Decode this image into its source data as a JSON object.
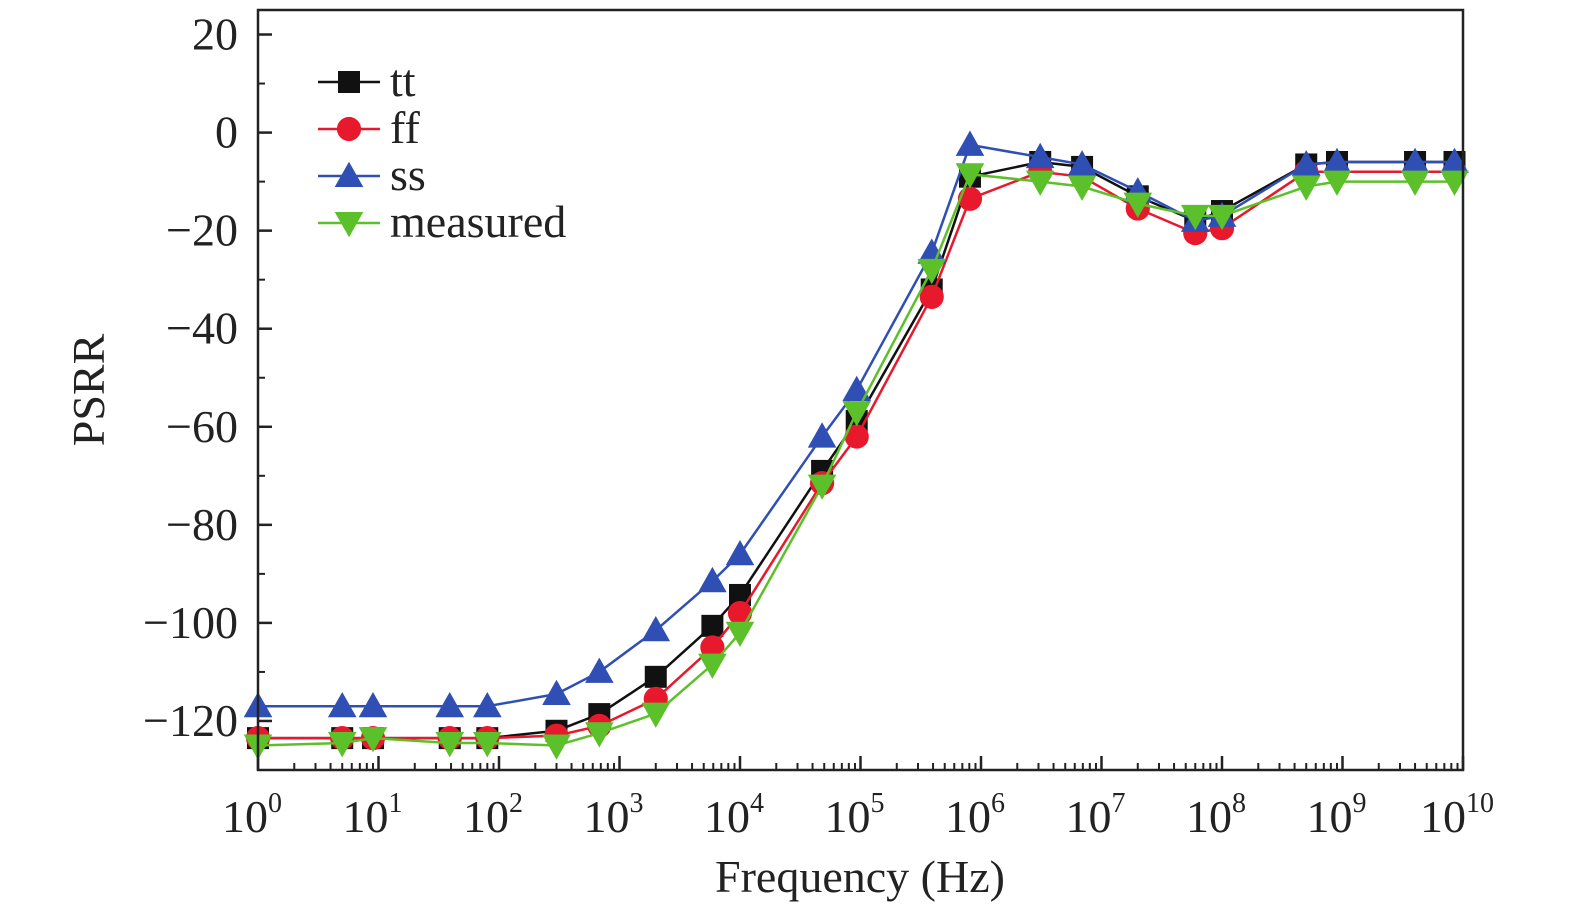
{
  "chart_data": {
    "type": "line",
    "title": "",
    "xlabel": "Frequency (Hz)",
    "ylabel": "PSRR",
    "x_scale": "log",
    "xlim": [
      1,
      10000000000
    ],
    "ylim": [
      -130,
      25
    ],
    "x_ticks": [
      {
        "base": "10",
        "exp": "0"
      },
      {
        "base": "10",
        "exp": "1"
      },
      {
        "base": "10",
        "exp": "2"
      },
      {
        "base": "10",
        "exp": "3"
      },
      {
        "base": "10",
        "exp": "4"
      },
      {
        "base": "10",
        "exp": "5"
      },
      {
        "base": "10",
        "exp": "6"
      },
      {
        "base": "10",
        "exp": "7"
      },
      {
        "base": "10",
        "exp": "8"
      },
      {
        "base": "10",
        "exp": "9"
      },
      {
        "base": "10",
        "exp": "10"
      }
    ],
    "y_ticks": [
      "20",
      "0",
      "−20",
      "−40",
      "−60",
      "−80",
      "−100",
      "−120"
    ],
    "y_tick_values": [
      20,
      0,
      -20,
      -40,
      -60,
      -80,
      -100,
      -120
    ],
    "grid": false,
    "legend_position": "top-left",
    "x": [
      1,
      5,
      9,
      39,
      80,
      300,
      680,
      2000,
      5900,
      10000,
      48000,
      93000,
      390000,
      810000,
      3100000,
      6900000,
      20000000,
      60000000,
      100000000,
      500000000,
      900000000,
      4000000000,
      8500000000
    ],
    "series": [
      {
        "name": "tt",
        "color": "#111111",
        "marker": "square",
        "values": [
          -123.5,
          -123.5,
          -123.5,
          -123.5,
          -123.5,
          -122,
          -118.6,
          -111,
          -100.6,
          -94.3,
          -69,
          -58.8,
          -32,
          -9,
          -6,
          -7,
          -13,
          -18,
          -16,
          -6.5,
          -6,
          -6,
          -6
        ]
      },
      {
        "name": "ff",
        "color": "#e8192c",
        "marker": "circle",
        "values": [
          -123.5,
          -123.5,
          -123.5,
          -123.5,
          -123.5,
          -123,
          -121,
          -115.5,
          -105,
          -98,
          -71.5,
          -62,
          -33.5,
          -13.5,
          -8,
          -9,
          -15.5,
          -20.5,
          -19.5,
          -8,
          -8,
          -8,
          -8
        ]
      },
      {
        "name": "ss",
        "color": "#2f4fb5",
        "marker": "triangle-up",
        "values": [
          -117,
          -117,
          -117,
          -117,
          -117,
          -114.5,
          -110,
          -101.5,
          -91.5,
          -86,
          -62,
          -52.5,
          -24.5,
          -2.5,
          -5,
          -6.5,
          -12,
          -18,
          -17,
          -6.5,
          -6,
          -6,
          -6
        ]
      },
      {
        "name": "measured",
        "color": "#5cc02a",
        "marker": "triangle-down",
        "values": [
          -125,
          -124.5,
          -123.5,
          -124.5,
          -124.5,
          -125,
          -122.5,
          -118.5,
          -108.5,
          -102,
          -72,
          -57,
          -28,
          -8.5,
          -10,
          -11,
          -14.5,
          -17,
          -17,
          -11,
          -10,
          -10,
          -10
        ]
      }
    ]
  }
}
